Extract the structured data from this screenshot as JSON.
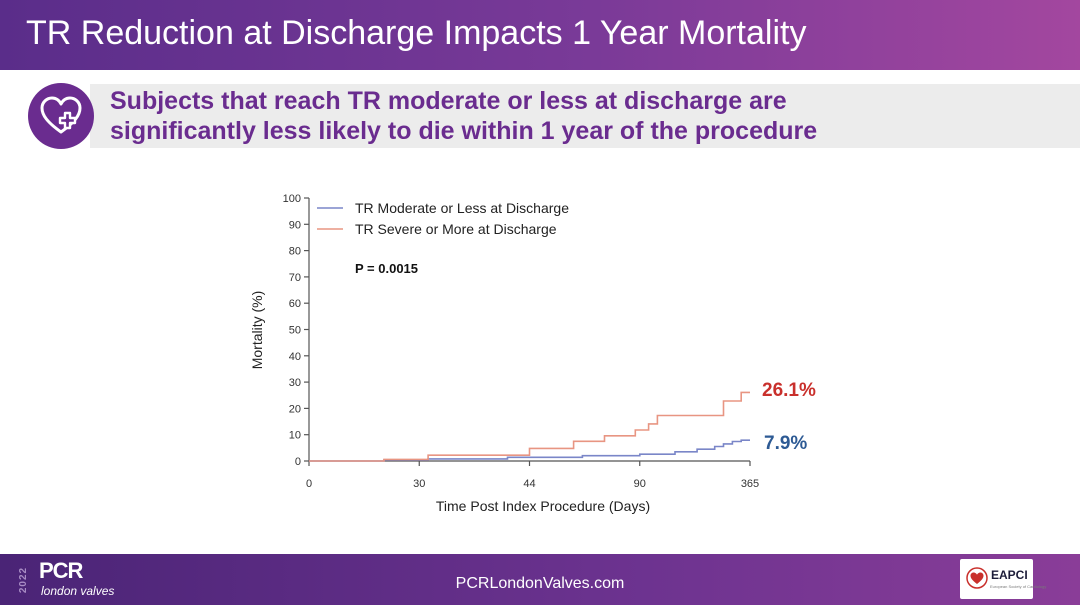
{
  "header": {
    "title": "TR Reduction at Discharge Impacts 1 Year Mortality"
  },
  "subtitle": {
    "line1": "Subjects that reach TR moderate or less at discharge are",
    "line2": "significantly less likely to die within 1 year of the procedure"
  },
  "icons": {
    "subtitle_icon": "heart-plus-icon",
    "eapci_icon": "heart-icon"
  },
  "colors": {
    "header_purple": "#6a2c8f",
    "series_moderate": "#7a86c8",
    "series_severe": "#e89582",
    "label_moderate": "#2d5a94",
    "label_severe": "#c9302c"
  },
  "chart_data": {
    "type": "line",
    "title": "",
    "xlabel": "Time Post Index Procedure (Days)",
    "ylabel": "Mortality (%)",
    "ylim": [
      0,
      100
    ],
    "yticks": [
      "0",
      "10",
      "20",
      "30",
      "40",
      "50",
      "60",
      "70",
      "80",
      "90",
      "100"
    ],
    "xticks": [
      "0",
      "30",
      "44",
      "90",
      "365"
    ],
    "x_axis_note": "non-linear (broken) day scale; x values are positions along the plotted axis",
    "annotation": "P = 0.0015",
    "series": [
      {
        "name": "TR Moderate or Less at Discharge",
        "end_label": "7.9%",
        "points": [
          [
            0,
            0
          ],
          [
            17,
            0
          ],
          [
            17,
            0.4
          ],
          [
            27,
            0.4
          ],
          [
            27,
            0.8
          ],
          [
            45,
            0.8
          ],
          [
            45,
            1.4
          ],
          [
            62,
            1.4
          ],
          [
            62,
            2.0
          ],
          [
            75,
            2.0
          ],
          [
            75,
            2.6
          ],
          [
            83,
            2.6
          ],
          [
            83,
            3.5
          ],
          [
            88,
            3.5
          ],
          [
            88,
            4.5
          ],
          [
            92,
            4.5
          ],
          [
            92,
            5.5
          ],
          [
            94,
            5.5
          ],
          [
            94,
            6.5
          ],
          [
            96,
            6.5
          ],
          [
            96,
            7.4
          ],
          [
            98,
            7.4
          ],
          [
            98,
            7.9
          ],
          [
            100,
            7.9
          ]
        ]
      },
      {
        "name": "TR Severe or More at Discharge",
        "end_label": "26.1%",
        "points": [
          [
            0,
            0
          ],
          [
            17,
            0
          ],
          [
            17,
            0.6
          ],
          [
            27,
            0.6
          ],
          [
            27,
            2.2
          ],
          [
            50,
            2.2
          ],
          [
            50,
            4.8
          ],
          [
            60,
            4.8
          ],
          [
            60,
            7.5
          ],
          [
            67,
            7.5
          ],
          [
            67,
            9.6
          ],
          [
            74,
            9.6
          ],
          [
            74,
            11.8
          ],
          [
            77,
            11.8
          ],
          [
            77,
            14.1
          ],
          [
            79,
            14.1
          ],
          [
            79,
            17.3
          ],
          [
            94,
            17.3
          ],
          [
            94,
            22.8
          ],
          [
            98,
            22.8
          ],
          [
            98,
            26.1
          ],
          [
            100,
            26.1
          ]
        ]
      }
    ]
  },
  "footer": {
    "year": "2022",
    "brand": "PCR",
    "brand_sub": "london valves",
    "url": "PCRLondonValves.com",
    "partner": "EAPCI",
    "partner_sub": "European Society of Cardiology"
  }
}
